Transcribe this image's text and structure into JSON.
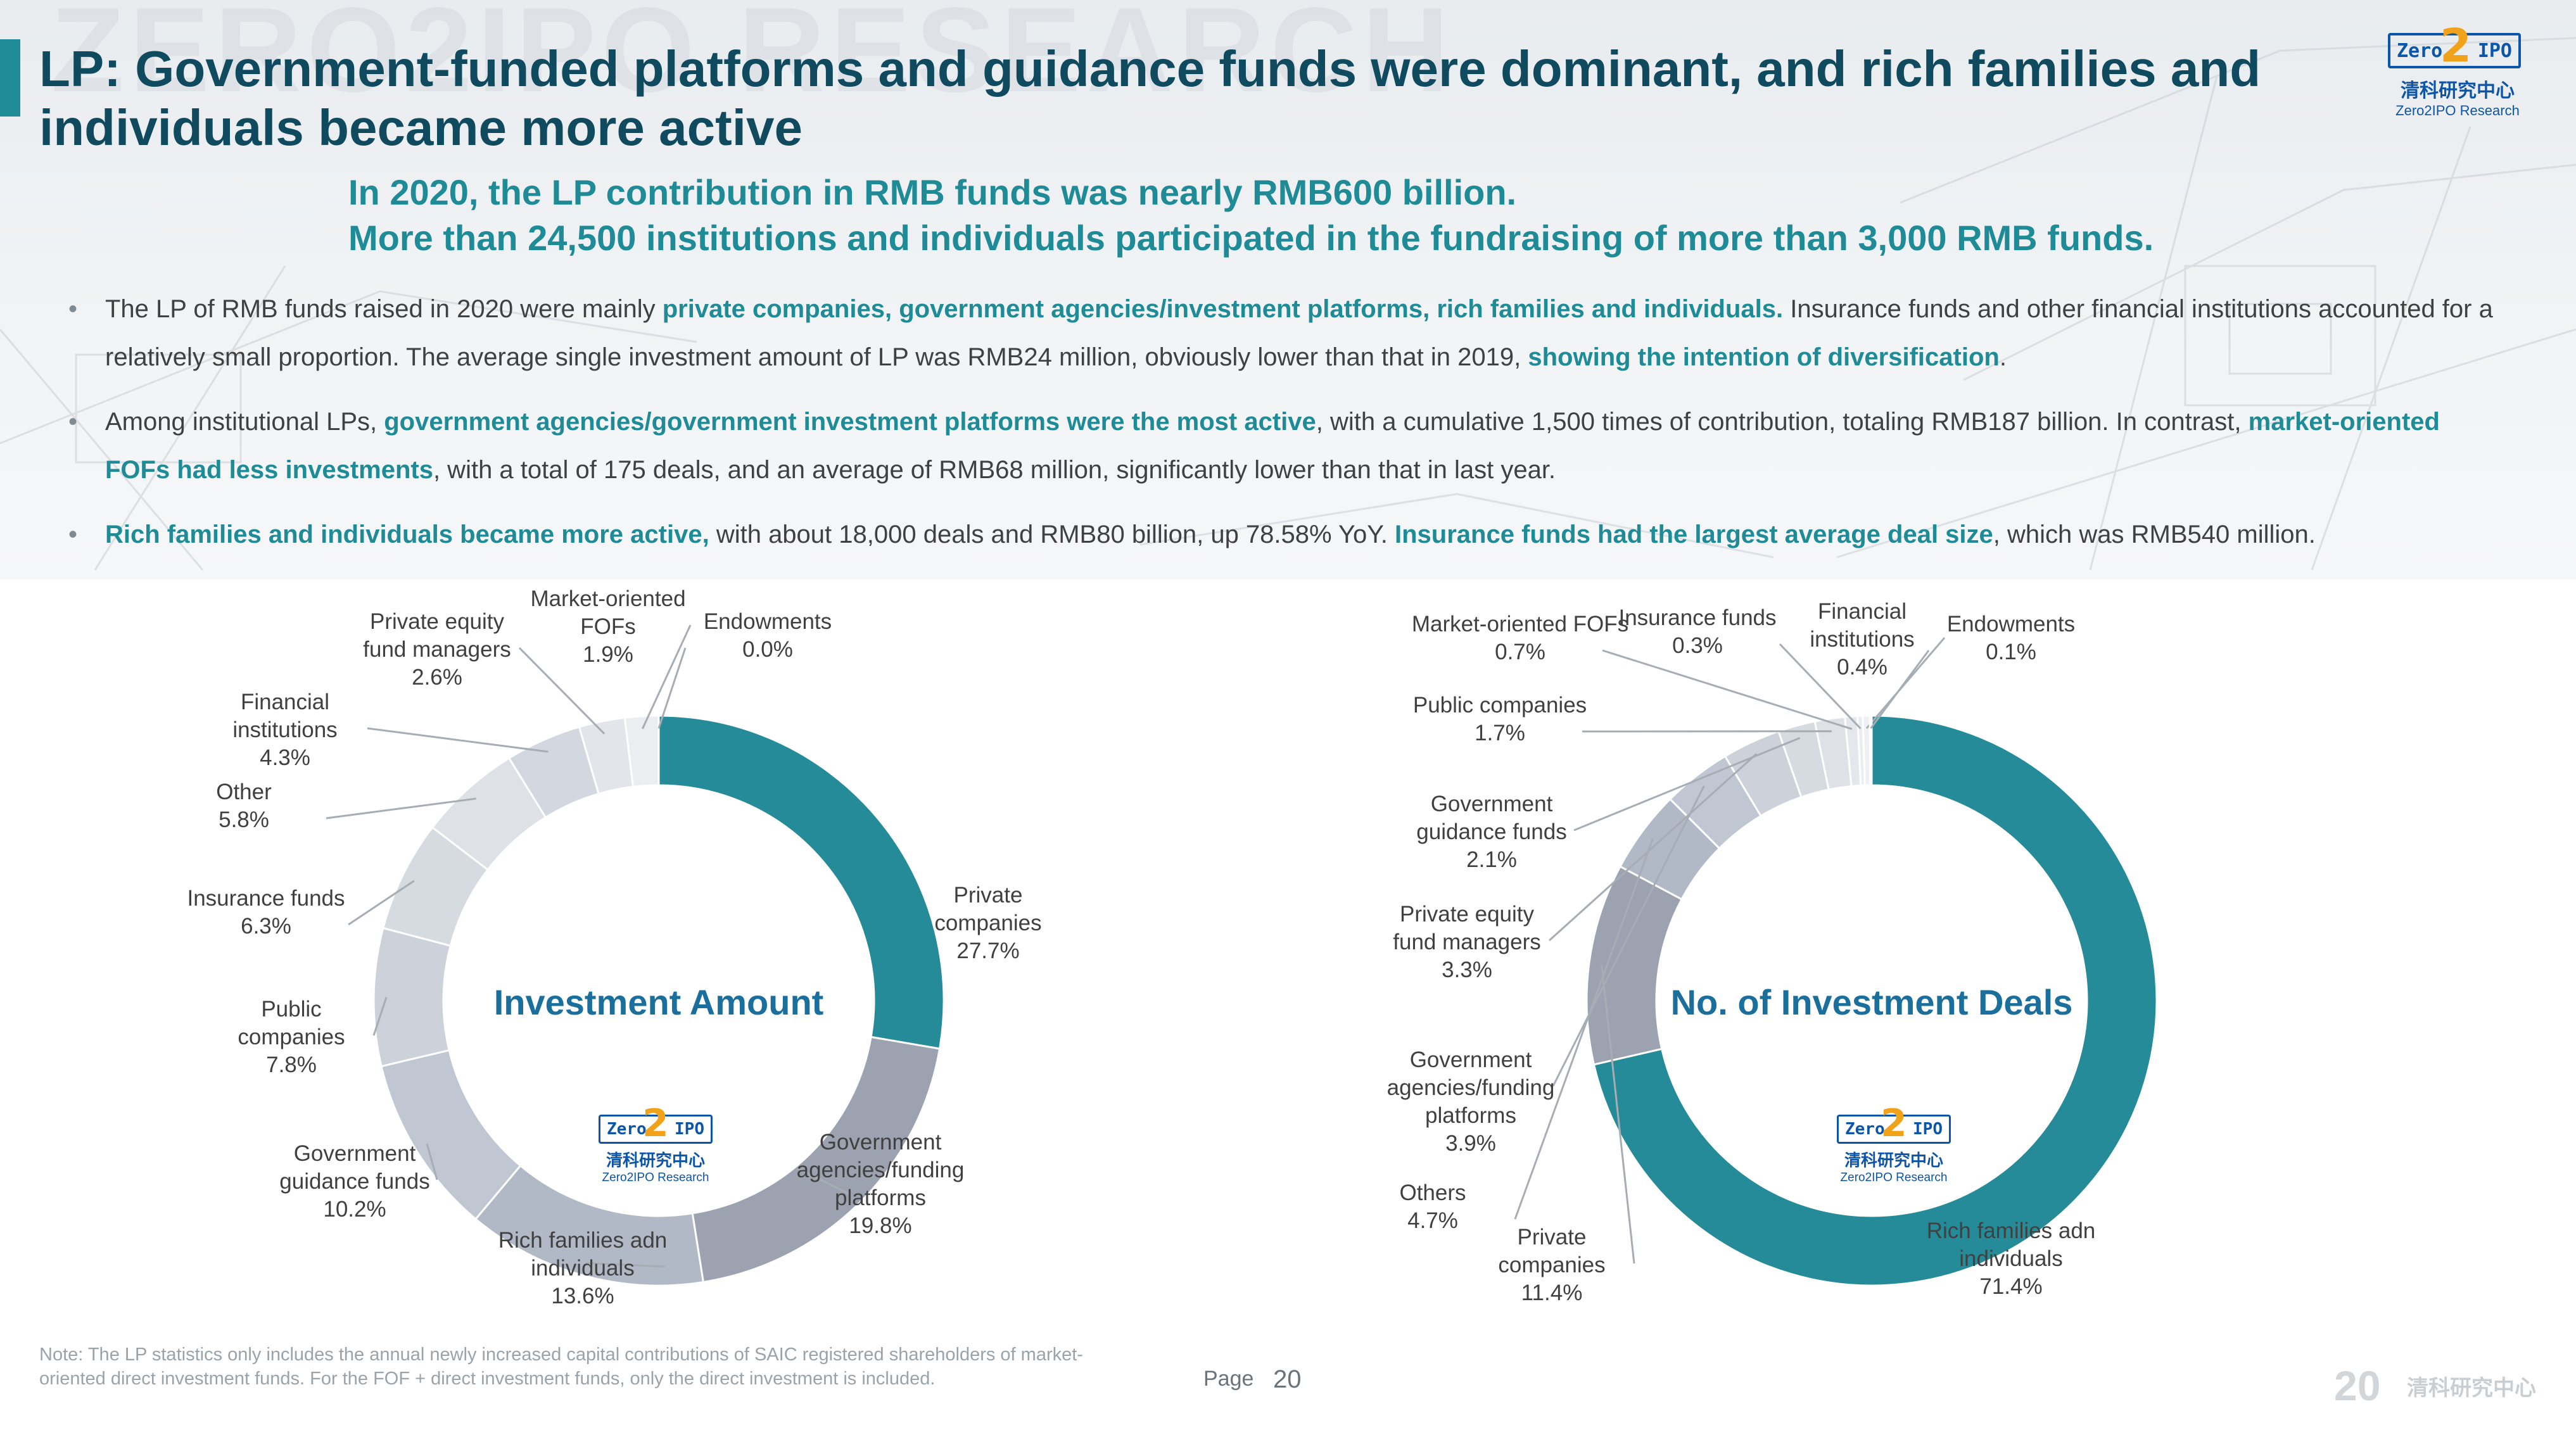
{
  "header": {
    "watermark": "ZERO2IPO RESEARCH",
    "title": "LP: Government-funded platforms and guidance funds were dominant, and rich families and individuals became more active",
    "subtitle_lines": [
      "In 2020, the LP contribution in RMB funds was nearly RMB600 billion.",
      "More than 24,500 institutions and individuals participated in the fundraising of more than 3,000 RMB funds."
    ]
  },
  "logo": {
    "mark_left": "Zero",
    "mark_digit": "2",
    "mark_right": "IPO",
    "cn": "清科研究中心",
    "en": "Zero2IPO Research"
  },
  "bullets": {
    "b1": {
      "t1": "The LP of RMB funds raised in 2020 were mainly ",
      "h1": "private companies, government agencies/investment platforms, rich families and individuals.",
      "t2": " Insurance funds and other financial institutions accounted for a relatively small proportion. The average single investment amount of LP was RMB24 million, obviously lower than that in 2019, ",
      "h2": "showing the intention of diversification",
      "t3": "."
    },
    "b2": {
      "t1": "Among institutional LPs, ",
      "h1": "government agencies/government investment platforms were the most active",
      "t2": ", with a cumulative 1,500 times of contribution, totaling RMB187 billion. In contrast, ",
      "h2": "market-oriented FOFs had less investments",
      "t3": ", with a total of 175 deals, and an average of RMB68 million, significantly lower than that in last year."
    },
    "b3": {
      "h1": "Rich families and individuals became more active,",
      "t1": " with about 18,000 deals and RMB80 billion, up 78.58% YoY. ",
      "h2": "Insurance funds had the largest average deal size",
      "t2": ", which was RMB540 million."
    }
  },
  "chart_data": [
    {
      "type": "pie",
      "donut": true,
      "title": "Investment Amount",
      "slices": [
        {
          "label": "Private companies",
          "value": 27.7,
          "value_label": "27.7%",
          "color": "#258b98"
        },
        {
          "label": "Government agencies/funding platforms",
          "value": 19.8,
          "value_label": "19.8%",
          "color": "#9da2b1"
        },
        {
          "label": "Rich families adn individuals",
          "value": 13.6,
          "value_label": "13.6%",
          "color": "#b1b8c6"
        },
        {
          "label": "Government guidance funds",
          "value": 10.2,
          "value_label": "10.2%",
          "color": "#c0c6d2"
        },
        {
          "label": "Public companies",
          "value": 7.8,
          "value_label": "7.8%",
          "color": "#ccd1da"
        },
        {
          "label": "Insurance funds",
          "value": 6.3,
          "value_label": "6.3%",
          "color": "#d6dae1"
        },
        {
          "label": "Other",
          "value": 5.8,
          "value_label": "5.8%",
          "color": "#dee1e6"
        },
        {
          "label": "Financial institutions",
          "value": 4.3,
          "value_label": "4.3%",
          "color": "#d3d7df"
        },
        {
          "label": "Private equity fund managers",
          "value": 2.6,
          "value_label": "2.6%",
          "color": "#e2e5e9"
        },
        {
          "label": "Market-oriented FOFs",
          "value": 1.9,
          "value_label": "1.9%",
          "color": "#ecedf0"
        },
        {
          "label": "Endowments",
          "value": 0.0,
          "value_label": "0.0%",
          "color": "#f3f4f6"
        }
      ],
      "label_lines": [
        [
          "Private",
          "companies",
          "27.7%"
        ],
        [
          "Government",
          "agencies/funding",
          "platforms",
          "19.8%"
        ],
        [
          "Rich families adn",
          "individuals",
          "13.6%"
        ],
        [
          "Government",
          "guidance funds",
          "10.2%"
        ],
        [
          "Public",
          "companies",
          "7.8%"
        ],
        [
          "Insurance funds",
          "6.3%"
        ],
        [
          "Other",
          "5.8%"
        ],
        [
          "Financial",
          "institutions",
          "4.3%"
        ],
        [
          "Private equity",
          "fund managers",
          "2.6%"
        ],
        [
          "Market-oriented",
          "FOFs",
          "1.9%"
        ],
        [
          "Endowments",
          "0.0%"
        ]
      ]
    },
    {
      "type": "pie",
      "donut": true,
      "title": "No. of Investment Deals",
      "slices": [
        {
          "label": "Rich families adn individuals",
          "value": 71.4,
          "value_label": "71.4%",
          "color": "#258b98"
        },
        {
          "label": "Private companies",
          "value": 11.4,
          "value_label": "11.4%",
          "color": "#9da2b1"
        },
        {
          "label": "Others",
          "value": 4.7,
          "value_label": "4.7%",
          "color": "#b1b8c6"
        },
        {
          "label": "Government agencies/funding platforms",
          "value": 3.9,
          "value_label": "3.9%",
          "color": "#c0c6d2"
        },
        {
          "label": "Private equity fund managers",
          "value": 3.3,
          "value_label": "3.3%",
          "color": "#ccd1da"
        },
        {
          "label": "Government guidance funds",
          "value": 2.1,
          "value_label": "2.1%",
          "color": "#d6dae1"
        },
        {
          "label": "Public companies",
          "value": 1.7,
          "value_label": "1.7%",
          "color": "#dee1e6"
        },
        {
          "label": "Market-oriented FOFs",
          "value": 0.7,
          "value_label": "0.7%",
          "color": "#e4e7eb"
        },
        {
          "label": "Insurance funds",
          "value": 0.3,
          "value_label": "0.3%",
          "color": "#eaecef"
        },
        {
          "label": "Financial institutions",
          "value": 0.4,
          "value_label": "0.4%",
          "color": "#eef0f2"
        },
        {
          "label": "Endowments",
          "value": 0.1,
          "value_label": "0.1%",
          "color": "#f3f4f6"
        }
      ],
      "label_lines": [
        [
          "Rich families adn",
          "individuals",
          "71.4%"
        ],
        [
          "Private",
          "companies",
          "11.4%"
        ],
        [
          "Others",
          "4.7%"
        ],
        [
          "Government",
          "agencies/funding",
          "platforms",
          "3.9%"
        ],
        [
          "Private equity",
          "fund managers",
          "3.3%"
        ],
        [
          "Government",
          "guidance funds",
          "2.1%"
        ],
        [
          "Public companies",
          "1.7%"
        ],
        [
          "Market-oriented FOFs",
          "0.7%"
        ],
        [
          "Insurance funds",
          "0.3%"
        ],
        [
          "Financial",
          "institutions",
          "0.4%"
        ],
        [
          "Endowments",
          "0.1%"
        ]
      ]
    }
  ],
  "footer": {
    "note": "Note: The LP statistics only includes the annual newly increased capital contributions of SAIC registered shareholders of market-oriented direct investment funds. For the FOF + direct investment funds, only the direct investment is included.",
    "page_label": "Page",
    "page_number": "20",
    "brand_mark": "20",
    "brand_cn": "清科研究中心"
  }
}
